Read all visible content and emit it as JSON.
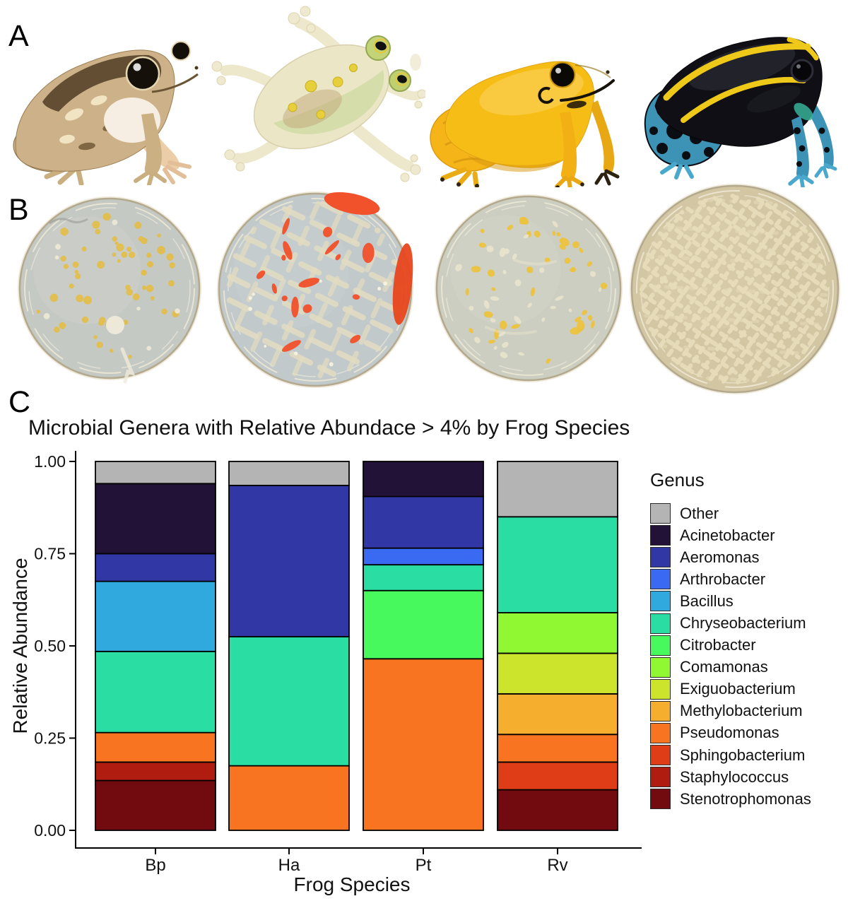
{
  "panels": {
    "a_label": "A",
    "b_label": "B",
    "c_label": "C"
  },
  "chart_data": {
    "type": "stacked_bar",
    "title": "Microbial Genera with Relative Abundace > 4% by Frog Species",
    "xlabel": "Frog Species",
    "ylabel": "Relative Abundance",
    "legend_title": "Genus",
    "ylim": [
      0,
      1
    ],
    "yticks": [
      "0.00",
      "0.25",
      "0.50",
      "0.75",
      "1.00"
    ],
    "categories": [
      "Bp",
      "Ha",
      "Pt",
      "Rv"
    ],
    "legend_position": "right",
    "grid": false,
    "bar_outline_color": "#000000",
    "genera_order": [
      "Other",
      "Acinetobacter",
      "Aeromonas",
      "Arthrobacter",
      "Bacillus",
      "Chryseobacterium",
      "Citrobacter",
      "Comamonas",
      "Exiguobacterium",
      "Methylobacterium",
      "Pseudomonas",
      "Sphingobacterium",
      "Staphylococcus",
      "Stenotrophomonas"
    ],
    "colors": {
      "Other": "#B4B4B4",
      "Acinetobacter": "#231237",
      "Aeromonas": "#3138A5",
      "Arthrobacter": "#3A6AF2",
      "Bacillus": "#2FA9DE",
      "Chryseobacterium": "#29DDA3",
      "Citrobacter": "#47F95C",
      "Comamonas": "#90F833",
      "Exiguobacterium": "#CCE42C",
      "Methylobacterium": "#F5AE2E",
      "Pseudomonas": "#F87420",
      "Sphingobacterium": "#DF3D18",
      "Staphylococcus": "#B01C10",
      "Stenotrophomonas": "#720B10"
    },
    "values": {
      "Bp": {
        "Stenotrophomonas": 0.135,
        "Staphylococcus": 0.05,
        "Pseudomonas": 0.08,
        "Chryseobacterium": 0.22,
        "Bacillus": 0.19,
        "Aeromonas": 0.075,
        "Acinetobacter": 0.19,
        "Other": 0.06
      },
      "Ha": {
        "Pseudomonas": 0.175,
        "Chryseobacterium": 0.35,
        "Aeromonas": 0.41,
        "Other": 0.065
      },
      "Pt": {
        "Pseudomonas": 0.465,
        "Citrobacter": 0.185,
        "Chryseobacterium": 0.07,
        "Arthrobacter": 0.045,
        "Aeromonas": 0.14,
        "Acinetobacter": 0.095
      },
      "Rv": {
        "Stenotrophomonas": 0.11,
        "Sphingobacterium": 0.075,
        "Pseudomonas": 0.075,
        "Methylobacterium": 0.11,
        "Exiguobacterium": 0.11,
        "Comamonas": 0.11,
        "Chryseobacterium": 0.26,
        "Other": 0.15
      }
    }
  }
}
